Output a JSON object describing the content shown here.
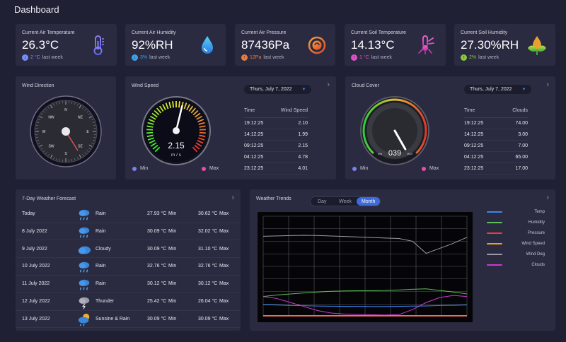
{
  "page": {
    "title": "Dashboard"
  },
  "stats": [
    {
      "label": "Current Air Temperature",
      "value": "26.3°C",
      "trend_value": "2 °C",
      "trend_text": "last week",
      "trend_dir": "down",
      "trend_color": "#7b8cf5",
      "icon": "thermometer-icon"
    },
    {
      "label": "Current Air Humidity",
      "value": "92%RH",
      "trend_value": "3%",
      "trend_text": "last week",
      "trend_dir": "down",
      "trend_color": "#3aa3f0",
      "icon": "water-drop-icon"
    },
    {
      "label": "Current Air Pressure",
      "value": "87436Pa",
      "trend_value": "12Pa",
      "trend_text": "last week",
      "trend_dir": "up",
      "trend_color": "#f07b3a",
      "icon": "pressure-icon"
    },
    {
      "label": "Current Soil Temperature",
      "value": "14.13°C",
      "trend_value": "1 °C",
      "trend_text": "last week",
      "trend_dir": "up",
      "trend_color": "#e04fc4",
      "icon": "soil-thermometer-icon"
    },
    {
      "label": "Current Soil Humidity",
      "value": "27.30%RH",
      "trend_value": "2%",
      "trend_text": "last week",
      "trend_dir": "up",
      "trend_color": "#8cc63f",
      "icon": "leaf-drop-icon"
    }
  ],
  "wind_direction": {
    "title": "Wind Direction",
    "labels": [
      "N",
      "NE",
      "E",
      "SE",
      "S",
      "SW",
      "W",
      "NW"
    ]
  },
  "wind_speed": {
    "title": "Wind Speed",
    "date": "Thurs, July 7, 2022",
    "value": "2.15",
    "unit": "m / s",
    "needle_fraction": 0.55,
    "min_label": "Min",
    "max_label": "Max",
    "min_color": "#7b7ff0",
    "max_color": "#e04fa8",
    "columns": [
      "Time",
      "Wind Speed"
    ],
    "rows": [
      [
        "19:12:25",
        "2.10"
      ],
      [
        "14:12:25",
        "1.99"
      ],
      [
        "09:12:25",
        "2.15"
      ],
      [
        "04:12:25",
        "4.78"
      ],
      [
        "23:12:25",
        "4.01"
      ]
    ]
  },
  "cloud_cover": {
    "title": "Cloud Cover",
    "date": "Thurs, July 7, 2022",
    "value": "039",
    "scale_min": "MIN",
    "scale_max": "MAX",
    "needle_fraction": 0.39,
    "min_label": "Min",
    "max_label": "Max",
    "min_color": "#7b7ff0",
    "max_color": "#e04fa8",
    "columns": [
      "Time",
      "Clouds"
    ],
    "rows": [
      [
        "19:12:25",
        "74.00"
      ],
      [
        "14:12:25",
        "3.00"
      ],
      [
        "09:12:25",
        "7.00"
      ],
      [
        "04:12:25",
        "65.00"
      ],
      [
        "23:12:25",
        "17.00"
      ]
    ]
  },
  "forecast": {
    "title": "7-Day Weather Forecast",
    "rows": [
      {
        "day": "Today",
        "icon": "rain-cloud-icon",
        "condition": "Rain",
        "min": "27.93 °C",
        "min_label": "Min",
        "max": "30.62 °C",
        "max_label": "Max"
      },
      {
        "day": "8 July 2022",
        "icon": "rain-cloud-icon",
        "condition": "Rain",
        "min": "30.09 °C",
        "min_label": "Min",
        "max": "32.02 °C",
        "max_label": "Max"
      },
      {
        "day": "9 July 2022",
        "icon": "cloud-icon",
        "condition": "Cloudy",
        "min": "30.09 °C",
        "min_label": "Min",
        "max": "31.10 °C",
        "max_label": "Max"
      },
      {
        "day": "10 July 2022",
        "icon": "rain-cloud-icon",
        "condition": "Rain",
        "min": "32.76 °C",
        "min_label": "Min",
        "max": "32.76 °C",
        "max_label": "Max"
      },
      {
        "day": "11 July 2022",
        "icon": "rain-cloud-icon",
        "condition": "Rain",
        "min": "30.12 °C",
        "min_label": "Min",
        "max": "30.12 °C",
        "max_label": "Max"
      },
      {
        "day": "12 July 2022",
        "icon": "thunder-cloud-icon",
        "condition": "Thunder",
        "min": "25.42 °C",
        "min_label": "Min",
        "max": "26.04 °C",
        "max_label": "Max"
      },
      {
        "day": "13 July 2022",
        "icon": "sun-rain-icon",
        "condition": "Sunsine & Rain",
        "min": "30.09 °C",
        "min_label": "Min",
        "max": "30.09 °C",
        "max_label": "Max"
      }
    ]
  },
  "trends": {
    "title": "Weather Trends",
    "tabs": [
      "Day",
      "Week",
      "Month"
    ],
    "active_tab": "Month"
  },
  "chart_data": {
    "type": "line",
    "title": "",
    "x": [
      0,
      1,
      2,
      3,
      4,
      5,
      6,
      7,
      8,
      9,
      10,
      11,
      12,
      13,
      14,
      15
    ],
    "ylim": [
      0,
      100
    ],
    "grid": true,
    "legend": "right",
    "series": [
      {
        "name": "Temp",
        "color": "#3b86f0",
        "values": [
          12,
          11.5,
          11,
          10.8,
          10.5,
          10.3,
          10.2,
          10.1,
          10,
          10,
          10.2,
          10.4,
          10.6,
          11,
          11.2,
          11.5
        ]
      },
      {
        "name": "Humidity",
        "color": "#5fbf5a",
        "values": [
          20,
          21.5,
          22.5,
          23.5,
          24.5,
          25.2,
          25.5,
          25.7,
          25.8,
          26,
          26.5,
          27.2,
          27.6,
          26,
          24.5,
          22.5
        ]
      },
      {
        "name": "Pressure",
        "color": "#e0443a",
        "values": [
          0.5,
          0.5,
          0.5,
          0.5,
          0.5,
          0.5,
          0.5,
          0.5,
          0.5,
          0.5,
          0.5,
          0.5,
          0.5,
          0.5,
          0.5,
          0.5
        ]
      },
      {
        "name": "Wind Speed",
        "color": "#e5a02a",
        "values": [
          1,
          1,
          1,
          1,
          1,
          1,
          1,
          1,
          1,
          1,
          1,
          1,
          1,
          1,
          1,
          1
        ]
      },
      {
        "name": "Wind Deg",
        "color": "#9a9aa6",
        "values": [
          80,
          80.4,
          80.7,
          81,
          80.8,
          80.3,
          79.8,
          79.3,
          78.8,
          78.3,
          77.8,
          75,
          63,
          68,
          73,
          79
        ]
      },
      {
        "name": "Clouds",
        "color": "#c93bd0",
        "values": [
          20,
          18,
          14,
          10,
          6,
          3.5,
          2.5,
          2,
          1.8,
          1.5,
          2,
          7,
          14,
          19,
          21,
          20
        ]
      }
    ]
  }
}
